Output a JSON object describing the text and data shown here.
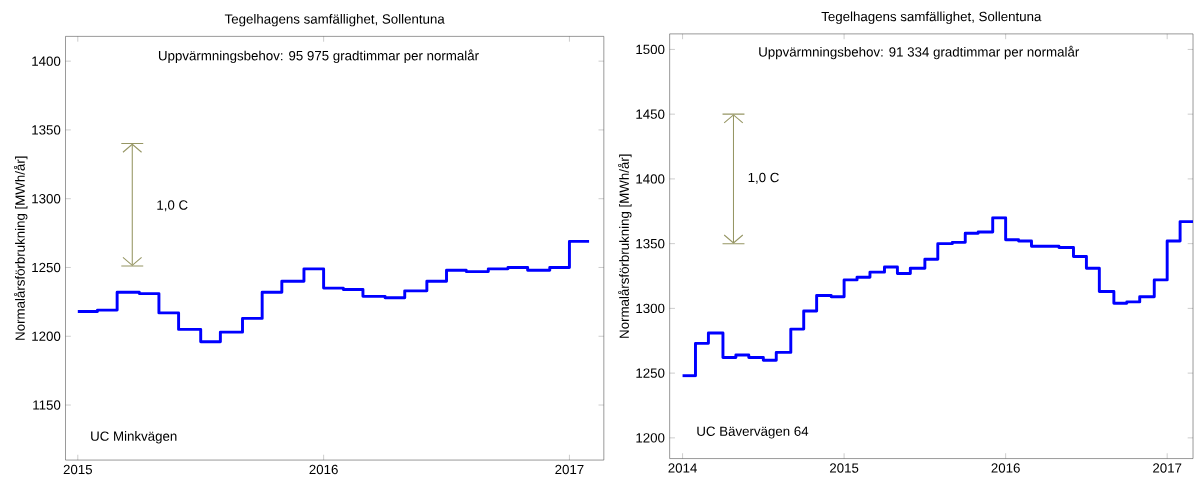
{
  "chart_data": [
    {
      "type": "step",
      "title": "Tegelhagens samfällighet, Sollentuna",
      "subtitle": "Uppvärmningsbehov:  95 975 gradtimmar per normalår",
      "ylabel": "Normalårsförbrukning [MWh/år]",
      "annotations": [
        "1,0 C",
        "UC Minkvägen"
      ],
      "x": [
        "2015-01",
        "2015-02",
        "2015-03",
        "2015-04",
        "2015-05",
        "2015-06",
        "2015-07",
        "2015-08",
        "2015-09",
        "2015-10",
        "2015-11",
        "2015-12",
        "2016-01",
        "2016-02",
        "2016-03",
        "2016-04",
        "2016-05",
        "2016-06",
        "2016-07",
        "2016-08",
        "2016-09",
        "2016-10",
        "2016-11",
        "2016-12",
        "2017-01",
        "2017-02"
      ],
      "series": [
        {
          "color": "#0000ff",
          "values": [
            1218,
            1219,
            1232,
            1231,
            1217,
            1205,
            1196,
            1203,
            1213,
            1232,
            1240,
            1249,
            1235,
            1234,
            1229,
            1228,
            1233,
            1240,
            1248,
            1247,
            1249,
            1250,
            1248,
            1250,
            1269,
            1269
          ]
        }
      ],
      "xlim": [
        "2014-12-13",
        "2017-02-21"
      ],
      "xticks": [
        "2015",
        "2016",
        "2017"
      ],
      "ylim": [
        1110,
        1418
      ],
      "yticks": [
        1150,
        1200,
        1250,
        1300,
        1350,
        1400
      ],
      "grid": false,
      "marker": "none",
      "line_style": "solid"
    },
    {
      "type": "step",
      "title": "Tegelhagens samfällighet, Sollentuna",
      "subtitle": "Uppvärmningsbehov:  91 334 gradtimmar per normalår",
      "ylabel": "Normalårsförbrukning [MWh/år]",
      "annotations": [
        "1,0 C",
        "UC Bävervägen 64"
      ],
      "x": [
        "2014-01",
        "2014-02",
        "2014-03",
        "2014-04",
        "2014-05",
        "2014-06",
        "2014-07",
        "2014-08",
        "2014-09",
        "2014-10",
        "2014-11",
        "2014-12",
        "2015-01",
        "2015-02",
        "2015-03",
        "2015-04",
        "2015-05",
        "2015-06",
        "2015-07",
        "2015-08",
        "2015-09",
        "2015-10",
        "2015-11",
        "2015-12",
        "2016-01",
        "2016-02",
        "2016-03",
        "2016-04",
        "2016-05",
        "2016-06",
        "2016-07",
        "2016-08",
        "2016-09",
        "2016-10",
        "2016-11",
        "2016-12",
        "2017-01",
        "2017-02",
        "2017-03"
      ],
      "series": [
        {
          "color": "#0000ff",
          "values": [
            1248,
            1273,
            1281,
            1262,
            1264,
            1262,
            1260,
            1266,
            1284,
            1298,
            1310,
            1309,
            1322,
            1324,
            1328,
            1332,
            1327,
            1331,
            1338,
            1350,
            1351,
            1358,
            1359,
            1370,
            1353,
            1352,
            1348,
            1348,
            1347,
            1340,
            1331,
            1313,
            1304,
            1305,
            1309,
            1322,
            1352,
            1367,
            1367
          ]
        }
      ],
      "xlim": [
        "2013-12-03",
        "2017-03-01"
      ],
      "xticks": [
        "2014",
        "2015",
        "2016",
        "2017"
      ],
      "ylim": [
        1184,
        1512
      ],
      "yticks": [
        1200,
        1250,
        1300,
        1350,
        1400,
        1450,
        1500
      ],
      "grid": false,
      "marker": "none",
      "line_style": "solid"
    }
  ]
}
